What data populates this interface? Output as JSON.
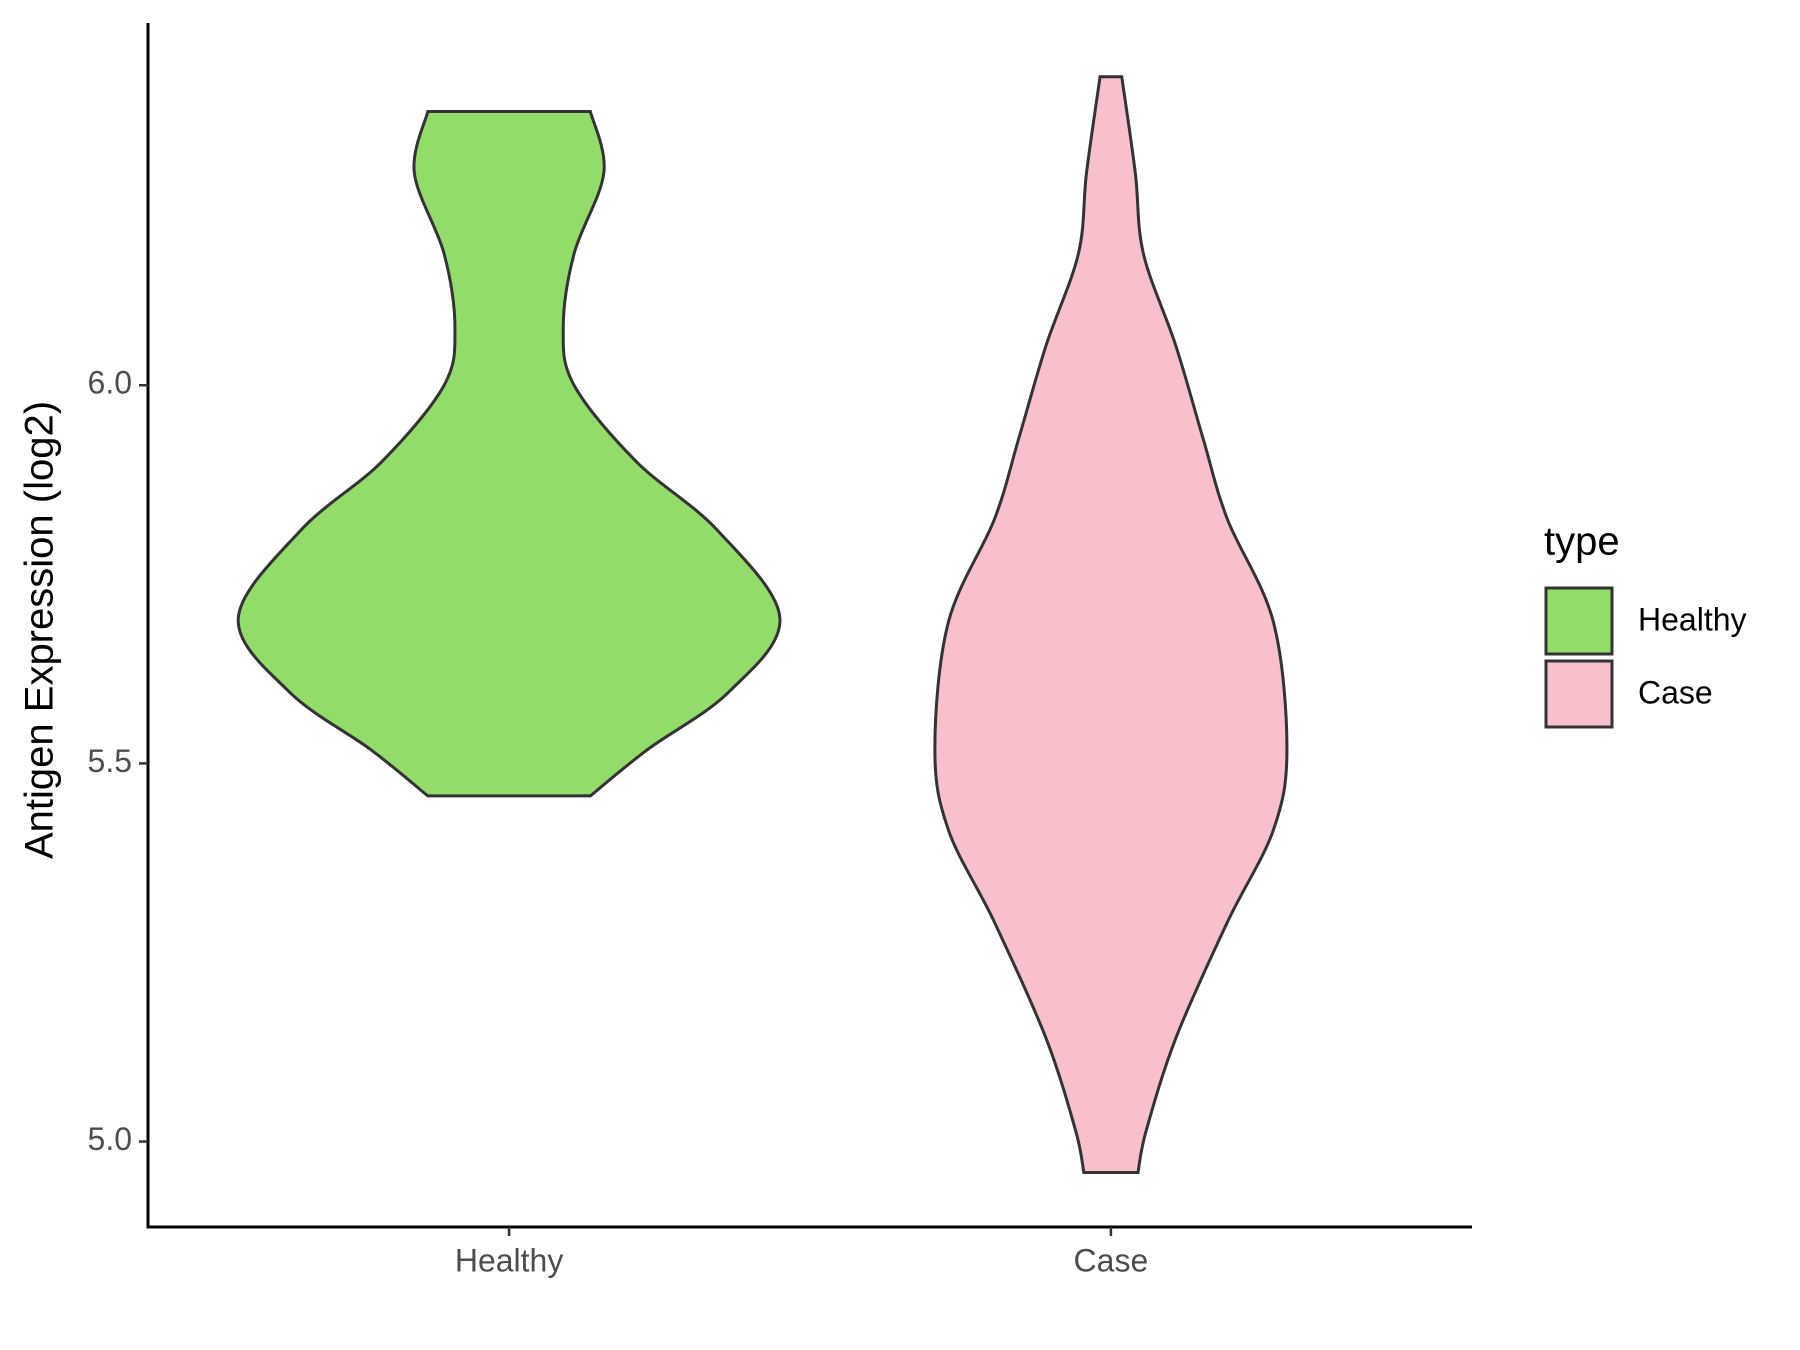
{
  "chart_data": {
    "type": "violin",
    "y_label": "Antigen Expression (log2)",
    "legend_title": "type",
    "categories": [
      "Healthy",
      "Case"
    ],
    "ylim": [
      4.887,
      6.479
    ],
    "yticks": [
      {
        "value": 5,
        "label": "5.0"
      },
      {
        "value": 5.5,
        "label": "5.5"
      },
      {
        "value": 6,
        "label": "6.0"
      }
    ],
    "legend_position": "right",
    "series": [
      {
        "name": "Healthy",
        "color": "#93dc6b",
        "density": {
          "y": [
            6.362,
            6.281,
            6.174,
            6.076,
            6.0,
            5.899,
            5.808,
            5.692,
            5.594,
            5.518,
            5.457
          ],
          "width": [
            0.3,
            0.35,
            0.24,
            0.2,
            0.24,
            0.47,
            0.77,
            1.0,
            0.81,
            0.51,
            0.3
          ]
        }
      },
      {
        "name": "Case",
        "color": "#f7c0cb",
        "density": {
          "y": [
            6.408,
            6.281,
            6.174,
            6.052,
            5.93,
            5.823,
            5.687,
            5.519,
            5.412,
            5.29,
            5.137,
            5.014,
            4.959
          ],
          "width": [
            0.04,
            0.09,
            0.12,
            0.24,
            0.34,
            0.43,
            0.6,
            0.65,
            0.6,
            0.43,
            0.24,
            0.13,
            0.1
          ]
        }
      }
    ]
  }
}
